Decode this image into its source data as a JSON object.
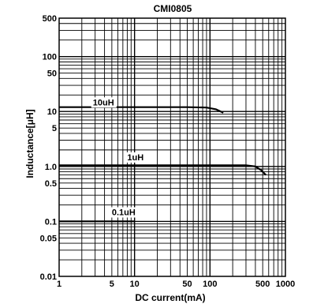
{
  "chart_data": {
    "type": "line",
    "title": "CMI0805",
    "xlabel": "DC current(mA)",
    "ylabel": "Inductance[μH]",
    "x_scale": "log",
    "y_scale": "log",
    "xlim": [
      1,
      1000
    ],
    "ylim": [
      0.01,
      500
    ],
    "grid": true,
    "x_ticks": [
      {
        "value": 1,
        "label": "1"
      },
      {
        "value": 5,
        "label": "5"
      },
      {
        "value": 10,
        "label": "10"
      },
      {
        "value": 50,
        "label": "50"
      },
      {
        "value": 100,
        "label": "100"
      },
      {
        "value": 500,
        "label": "500"
      },
      {
        "value": 1000,
        "label": "1000"
      }
    ],
    "y_ticks": [
      {
        "value": 0.01,
        "label": "0.01"
      },
      {
        "value": 0.05,
        "label": "0.05"
      },
      {
        "value": 0.1,
        "label": "0.1"
      },
      {
        "value": 0.5,
        "label": "0.5"
      },
      {
        "value": 1,
        "label": "1.0"
      },
      {
        "value": 5,
        "label": "5"
      },
      {
        "value": 10,
        "label": "10"
      },
      {
        "value": 50,
        "label": "50"
      },
      {
        "value": 100,
        "label": "100"
      },
      {
        "value": 500,
        "label": "500"
      }
    ],
    "series": [
      {
        "name": "10uH",
        "label_at": {
          "x": 2.8,
          "y": 13
        },
        "points": [
          [
            1,
            12
          ],
          [
            50,
            12
          ],
          [
            90,
            11.8
          ],
          [
            120,
            11
          ],
          [
            150,
            9.5
          ]
        ]
      },
      {
        "name": "1uH",
        "label_at": {
          "x": 8,
          "y": 1.3
        },
        "points": [
          [
            1,
            1.05
          ],
          [
            100,
            1.05
          ],
          [
            300,
            1.05
          ],
          [
            400,
            1.0
          ],
          [
            480,
            0.85
          ],
          [
            550,
            0.7
          ]
        ]
      },
      {
        "name": "0.1uH",
        "label_at": {
          "x": 5,
          "y": 0.13
        },
        "points": [
          [
            1,
            0.1
          ],
          [
            10,
            0.1
          ]
        ]
      }
    ]
  }
}
